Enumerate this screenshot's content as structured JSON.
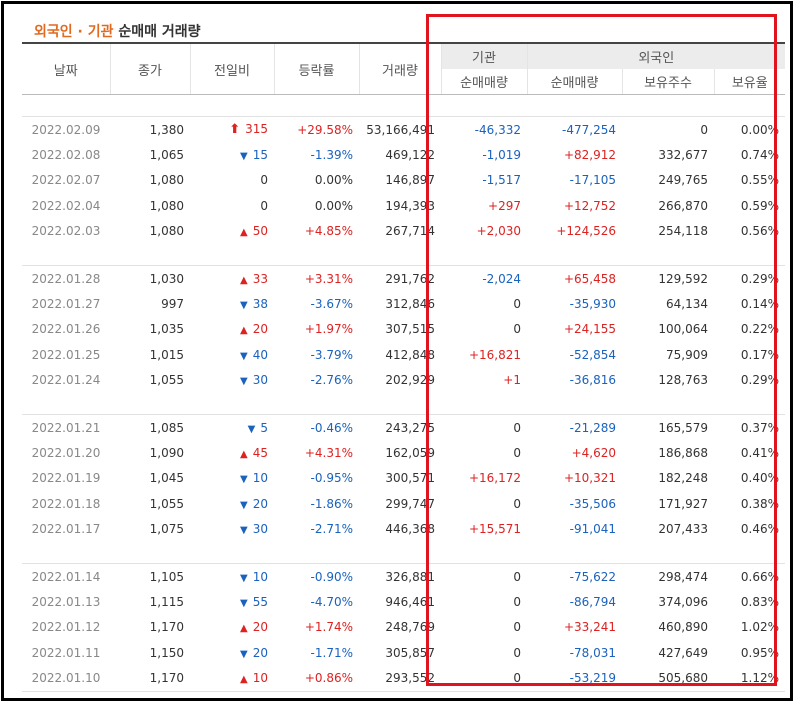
{
  "title": {
    "highlight": "외국인 · 기관",
    "rest": "순매매 거래량"
  },
  "headers": {
    "date": "날짜",
    "close": "종가",
    "diff": "전일비",
    "rate": "등락률",
    "volume": "거래량",
    "inst_group": "기관",
    "inst_net": "순매매량",
    "foreign_group": "외국인",
    "foreign_net": "순매매량",
    "foreign_hold": "보유주수",
    "foreign_rate": "보유율"
  },
  "colors": {
    "up": "#dd2222",
    "down": "#1a62bd",
    "highlight_box": "#e0141f",
    "title_accent": "#e06a1f"
  },
  "groups": [
    {
      "rows": [
        {
          "date": "2022.02.09",
          "close": "1,380",
          "dir": "upper",
          "diff": "315",
          "rate": "+29.58%",
          "volume": "53,166,491",
          "inst": "-46,332",
          "fnet": "-477,254",
          "fhold": "0",
          "frate": "0.00%"
        },
        {
          "date": "2022.02.08",
          "close": "1,065",
          "dir": "down",
          "diff": "15",
          "rate": "-1.39%",
          "volume": "469,122",
          "inst": "-1,019",
          "fnet": "+82,912",
          "fhold": "332,677",
          "frate": "0.74%"
        },
        {
          "date": "2022.02.07",
          "close": "1,080",
          "dir": "none",
          "diff": "0",
          "rate": "0.00%",
          "volume": "146,897",
          "inst": "-1,517",
          "fnet": "-17,105",
          "fhold": "249,765",
          "frate": "0.55%"
        },
        {
          "date": "2022.02.04",
          "close": "1,080",
          "dir": "none",
          "diff": "0",
          "rate": "0.00%",
          "volume": "194,393",
          "inst": "+297",
          "fnet": "+12,752",
          "fhold": "266,870",
          "frate": "0.59%"
        },
        {
          "date": "2022.02.03",
          "close": "1,080",
          "dir": "up",
          "diff": "50",
          "rate": "+4.85%",
          "volume": "267,714",
          "inst": "+2,030",
          "fnet": "+124,526",
          "fhold": "254,118",
          "frate": "0.56%"
        }
      ]
    },
    {
      "rows": [
        {
          "date": "2022.01.28",
          "close": "1,030",
          "dir": "up",
          "diff": "33",
          "rate": "+3.31%",
          "volume": "291,762",
          "inst": "-2,024",
          "fnet": "+65,458",
          "fhold": "129,592",
          "frate": "0.29%"
        },
        {
          "date": "2022.01.27",
          "close": "997",
          "dir": "down",
          "diff": "38",
          "rate": "-3.67%",
          "volume": "312,846",
          "inst": "0",
          "fnet": "-35,930",
          "fhold": "64,134",
          "frate": "0.14%"
        },
        {
          "date": "2022.01.26",
          "close": "1,035",
          "dir": "up",
          "diff": "20",
          "rate": "+1.97%",
          "volume": "307,515",
          "inst": "0",
          "fnet": "+24,155",
          "fhold": "100,064",
          "frate": "0.22%"
        },
        {
          "date": "2022.01.25",
          "close": "1,015",
          "dir": "down",
          "diff": "40",
          "rate": "-3.79%",
          "volume": "412,848",
          "inst": "+16,821",
          "fnet": "-52,854",
          "fhold": "75,909",
          "frate": "0.17%"
        },
        {
          "date": "2022.01.24",
          "close": "1,055",
          "dir": "down",
          "diff": "30",
          "rate": "-2.76%",
          "volume": "202,929",
          "inst": "+1",
          "fnet": "-36,816",
          "fhold": "128,763",
          "frate": "0.29%"
        }
      ]
    },
    {
      "rows": [
        {
          "date": "2022.01.21",
          "close": "1,085",
          "dir": "down",
          "diff": "5",
          "rate": "-0.46%",
          "volume": "243,275",
          "inst": "0",
          "fnet": "-21,289",
          "fhold": "165,579",
          "frate": "0.37%"
        },
        {
          "date": "2022.01.20",
          "close": "1,090",
          "dir": "up",
          "diff": "45",
          "rate": "+4.31%",
          "volume": "162,059",
          "inst": "0",
          "fnet": "+4,620",
          "fhold": "186,868",
          "frate": "0.41%"
        },
        {
          "date": "2022.01.19",
          "close": "1,045",
          "dir": "down",
          "diff": "10",
          "rate": "-0.95%",
          "volume": "300,571",
          "inst": "+16,172",
          "fnet": "+10,321",
          "fhold": "182,248",
          "frate": "0.40%"
        },
        {
          "date": "2022.01.18",
          "close": "1,055",
          "dir": "down",
          "diff": "20",
          "rate": "-1.86%",
          "volume": "299,747",
          "inst": "0",
          "fnet": "-35,506",
          "fhold": "171,927",
          "frate": "0.38%"
        },
        {
          "date": "2022.01.17",
          "close": "1,075",
          "dir": "down",
          "diff": "30",
          "rate": "-2.71%",
          "volume": "446,368",
          "inst": "+15,571",
          "fnet": "-91,041",
          "fhold": "207,433",
          "frate": "0.46%"
        }
      ]
    },
    {
      "rows": [
        {
          "date": "2022.01.14",
          "close": "1,105",
          "dir": "down",
          "diff": "10",
          "rate": "-0.90%",
          "volume": "326,881",
          "inst": "0",
          "fnet": "-75,622",
          "fhold": "298,474",
          "frate": "0.66%"
        },
        {
          "date": "2022.01.13",
          "close": "1,115",
          "dir": "down",
          "diff": "55",
          "rate": "-4.70%",
          "volume": "946,461",
          "inst": "0",
          "fnet": "-86,794",
          "fhold": "374,096",
          "frate": "0.83%"
        },
        {
          "date": "2022.01.12",
          "close": "1,170",
          "dir": "up",
          "diff": "20",
          "rate": "+1.74%",
          "volume": "248,769",
          "inst": "0",
          "fnet": "+33,241",
          "fhold": "460,890",
          "frate": "1.02%"
        },
        {
          "date": "2022.01.11",
          "close": "1,150",
          "dir": "down",
          "diff": "20",
          "rate": "-1.71%",
          "volume": "305,857",
          "inst": "0",
          "fnet": "-78,031",
          "fhold": "427,649",
          "frate": "0.95%"
        },
        {
          "date": "2022.01.10",
          "close": "1,170",
          "dir": "up",
          "diff": "10",
          "rate": "+0.86%",
          "volume": "293,552",
          "inst": "0",
          "fnet": "-53,219",
          "fhold": "505,680",
          "frate": "1.12%"
        }
      ]
    }
  ]
}
